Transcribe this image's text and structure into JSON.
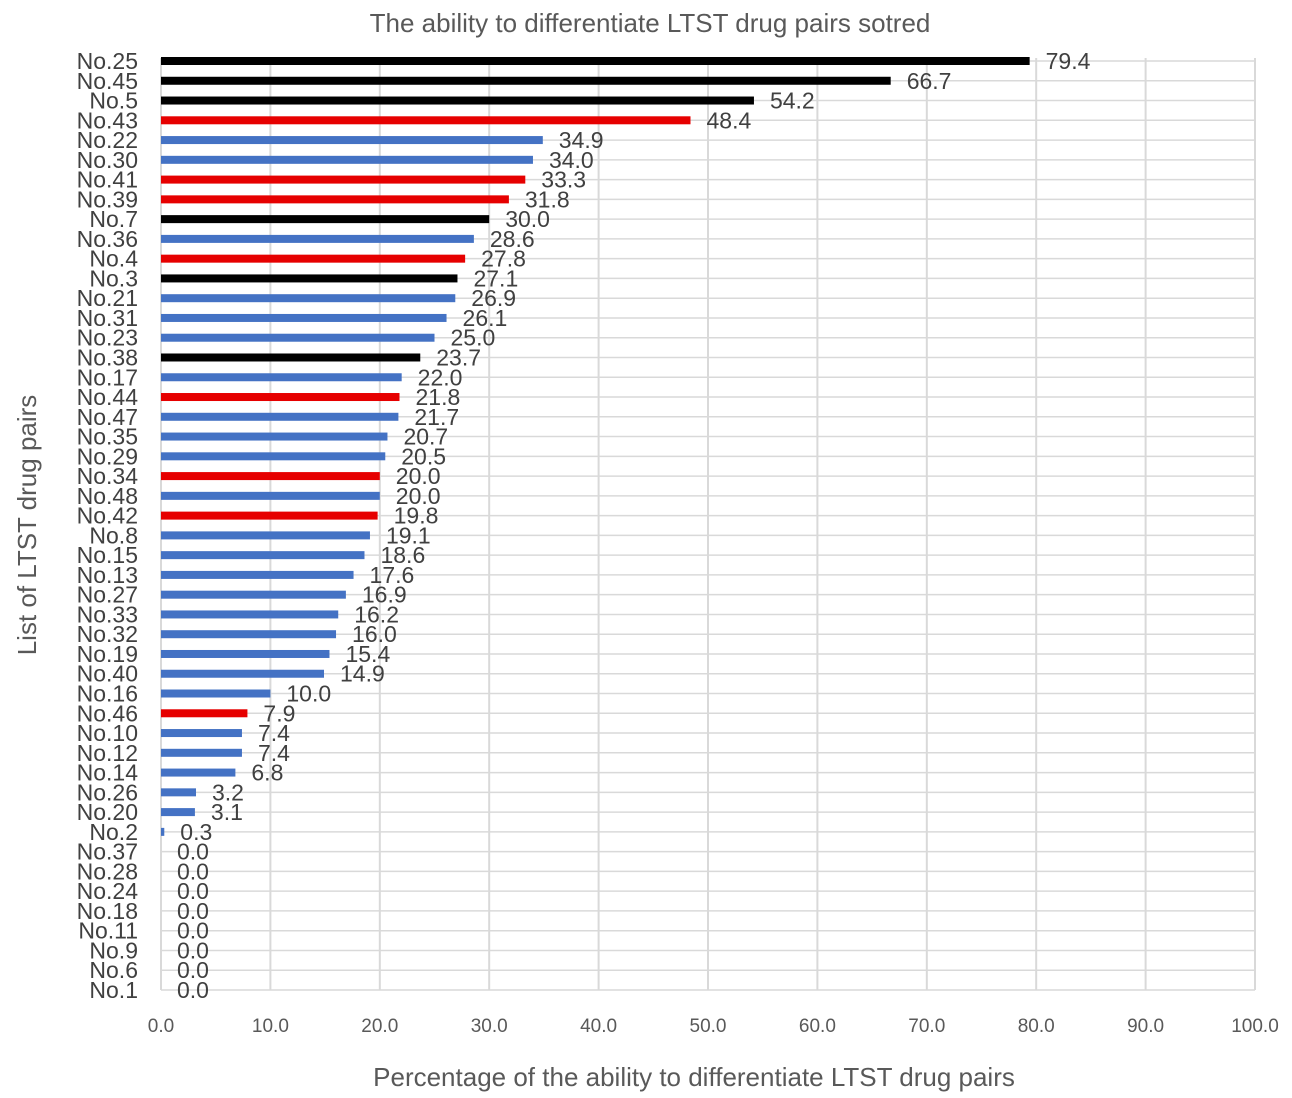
{
  "chart_data": {
    "type": "bar",
    "orientation": "horizontal",
    "title": "The ability to differentiate LTST drug pairs sotred",
    "xlabel": "Percentage of the ability to differentiate LTST drug pairs",
    "ylabel": "List of LTST drug pairs",
    "xlim": [
      0,
      100
    ],
    "xticks": [
      "0.0",
      "10.0",
      "20.0",
      "30.0",
      "40.0",
      "50.0",
      "60.0",
      "70.0",
      "80.0",
      "90.0",
      "100.0"
    ],
    "grid": "vertical and horizontal",
    "legend": "none",
    "colors": {
      "black": "#000000",
      "red": "#e60000",
      "blue": "#4472c4"
    },
    "categories": [
      "No.25",
      "No.45",
      "No.5",
      "No.43",
      "No.22",
      "No.30",
      "No.41",
      "No.39",
      "No.7",
      "No.36",
      "No.4",
      "No.3",
      "No.21",
      "No.31",
      "No.23",
      "No.38",
      "No.17",
      "No.44",
      "No.47",
      "No.35",
      "No.29",
      "No.34",
      "No.48",
      "No.42",
      "No.8",
      "No.15",
      "No.13",
      "No.27",
      "No.33",
      "No.32",
      "No.19",
      "No.40",
      "No.16",
      "No.46",
      "No.10",
      "No.12",
      "No.14",
      "No.26",
      "No.20",
      "No.2",
      "No.37",
      "No.28",
      "No.24",
      "No.18",
      "No.11",
      "No.9",
      "No.6",
      "No.1"
    ],
    "values": [
      79.4,
      66.7,
      54.2,
      48.4,
      34.9,
      34.0,
      33.3,
      31.8,
      30.0,
      28.6,
      27.8,
      27.1,
      26.9,
      26.1,
      25.0,
      23.7,
      22.0,
      21.8,
      21.7,
      20.7,
      20.5,
      20.0,
      20.0,
      19.8,
      19.1,
      18.6,
      17.6,
      16.9,
      16.2,
      16.0,
      15.4,
      14.9,
      10.0,
      7.9,
      7.4,
      7.4,
      6.8,
      3.2,
      3.1,
      0.3,
      0.0,
      0.0,
      0.0,
      0.0,
      0.0,
      0.0,
      0.0,
      0.0
    ],
    "labels": [
      "79.4",
      "66.7",
      "54.2",
      "48.4",
      "34.9",
      "34.0",
      "33.3",
      "31.8",
      "30.0",
      "28.6",
      "27.8",
      "27.1",
      "26.9",
      "26.1",
      "25.0",
      "23.7",
      "22.0",
      "21.8",
      "21.7",
      "20.7",
      "20.5",
      "20.0",
      "20.0",
      "19.8",
      "19.1",
      "18.6",
      "17.6",
      "16.9",
      "16.2",
      "16.0",
      "15.4",
      "14.9",
      "10.0",
      "7.9",
      "7.4",
      "7.4",
      "6.8",
      "3.2",
      "3.1",
      "0.3",
      "0.0",
      "0.0",
      "0.0",
      "0.0",
      "0.0",
      "0.0",
      "0.0",
      "0.0"
    ],
    "bar_colors": [
      "black",
      "black",
      "black",
      "red",
      "blue",
      "blue",
      "red",
      "red",
      "black",
      "blue",
      "red",
      "black",
      "blue",
      "blue",
      "blue",
      "black",
      "blue",
      "red",
      "blue",
      "blue",
      "blue",
      "red",
      "blue",
      "red",
      "blue",
      "blue",
      "blue",
      "blue",
      "blue",
      "blue",
      "blue",
      "blue",
      "blue",
      "red",
      "blue",
      "blue",
      "blue",
      "blue",
      "blue",
      "blue",
      "blue",
      "blue",
      "blue",
      "blue",
      "blue",
      "blue",
      "blue",
      "blue"
    ]
  }
}
